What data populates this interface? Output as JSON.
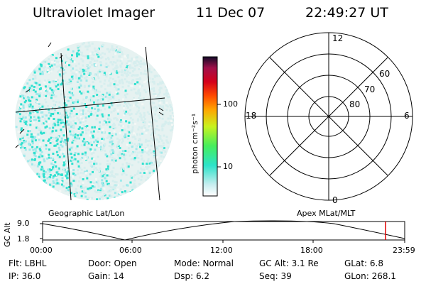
{
  "header": {
    "instrument": "Ultraviolet Imager",
    "date": "11 Dec 07",
    "time": "22:49:27 UT"
  },
  "colorbar": {
    "unit_label": "photon cm⁻²s⁻¹",
    "ticks": [
      "100",
      "10"
    ]
  },
  "polar": {
    "mlt_labels": {
      "top": "12",
      "left": "18",
      "right": "6",
      "bottom": "0"
    },
    "lat_labels": [
      "60",
      "70",
      "80"
    ]
  },
  "captions": {
    "left": "Geographic Lat/Lon",
    "right": "Apex MLat/MLT"
  },
  "orbit_plot": {
    "ylabel": "GC Alt",
    "yticks": [
      "9.0",
      "1.8"
    ],
    "xticks": [
      "00:00",
      "06:00",
      "12:00",
      "18:00",
      "23:59"
    ],
    "marker_color": "#e00000"
  },
  "info": {
    "flt": "Flt: LBHL",
    "door": "Door: Open",
    "mode": "Mode: Normal",
    "gc_alt": "GC Alt: 3.1 Re",
    "glat": "GLat:    6.8",
    "ip": "IP: 36.0",
    "gain": "Gain: 14",
    "dsp": "Dsp:     6.2",
    "seq": "Seq: 39",
    "glon": "GLon: 268.1"
  }
}
